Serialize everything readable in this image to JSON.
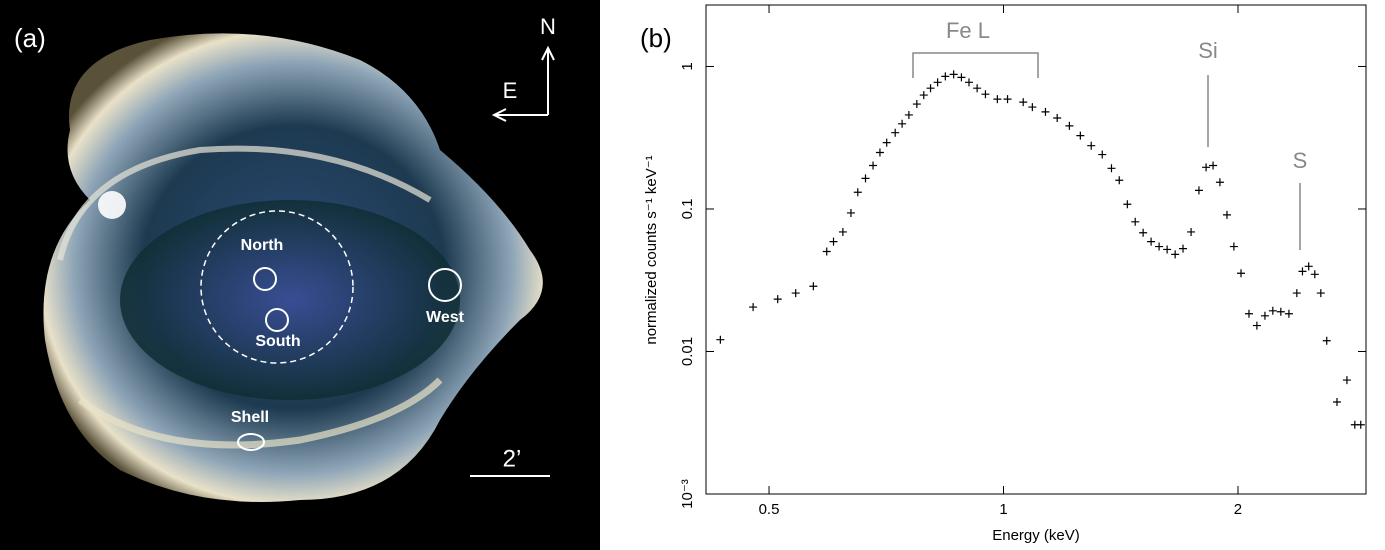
{
  "image_panel": {
    "label": "(a)",
    "north": "N",
    "east": "E",
    "regions": [
      "North",
      "South",
      "West",
      "Shell"
    ],
    "scale": "2’"
  },
  "chart_data": {
    "type": "scatter",
    "label": "(b)",
    "x_label": "Energy (keV)",
    "y_label": "normalized counts s⁻¹ keV⁻¹",
    "annotations": [
      "Fe L",
      "Si",
      "S"
    ],
    "log_x": true,
    "log_y": true,
    "color": "#000000",
    "xlim": [
      0.415,
      2.92
    ],
    "ylim": [
      0.001,
      2.7
    ],
    "xticks": [
      0.5,
      1,
      2
    ],
    "yticks": [
      {
        "value": 0.001,
        "label": "10⁻³"
      },
      0.01,
      0.1,
      1
    ],
    "x": [
      0.433,
      0.477,
      0.513,
      0.541,
      0.57,
      0.593,
      0.605,
      0.622,
      0.637,
      0.65,
      0.665,
      0.68,
      0.694,
      0.708,
      0.726,
      0.741,
      0.756,
      0.774,
      0.79,
      0.806,
      0.823,
      0.842,
      0.863,
      0.883,
      0.903,
      0.925,
      0.948,
      0.982,
      1.012,
      1.06,
      1.089,
      1.132,
      1.172,
      1.215,
      1.255,
      1.296,
      1.339,
      1.376,
      1.408,
      1.442,
      1.476,
      1.511,
      1.547,
      1.584,
      1.622,
      1.661,
      1.7,
      1.741,
      1.782,
      1.82,
      1.858,
      1.896,
      1.936,
      1.976,
      2.018,
      2.066,
      2.115,
      2.166,
      2.217,
      2.27,
      2.325,
      2.38,
      2.42,
      2.465,
      2.51,
      2.555,
      2.6,
      2.68,
      2.76,
      2.825,
      2.875
    ],
    "values": [
      0.0121,
      0.0205,
      0.0233,
      0.0257,
      0.0287,
      0.0503,
      0.059,
      0.069,
      0.0938,
      0.131,
      0.164,
      0.202,
      0.249,
      0.292,
      0.343,
      0.396,
      0.457,
      0.545,
      0.63,
      0.704,
      0.774,
      0.852,
      0.88,
      0.839,
      0.774,
      0.704,
      0.639,
      0.59,
      0.59,
      0.562,
      0.519,
      0.48,
      0.435,
      0.383,
      0.327,
      0.278,
      0.241,
      0.193,
      0.159,
      0.108,
      0.0813,
      0.0681,
      0.059,
      0.0545,
      0.052,
      0.048,
      0.0527,
      0.069,
      0.135,
      0.196,
      0.202,
      0.154,
      0.0909,
      0.0545,
      0.0354,
      0.0184,
      0.0152,
      0.0178,
      0.0193,
      0.019,
      0.0184,
      0.0257,
      0.0365,
      0.0396,
      0.0348,
      0.0257,
      0.0119,
      0.00442,
      0.0063,
      0.00306,
      0.00306
    ]
  }
}
